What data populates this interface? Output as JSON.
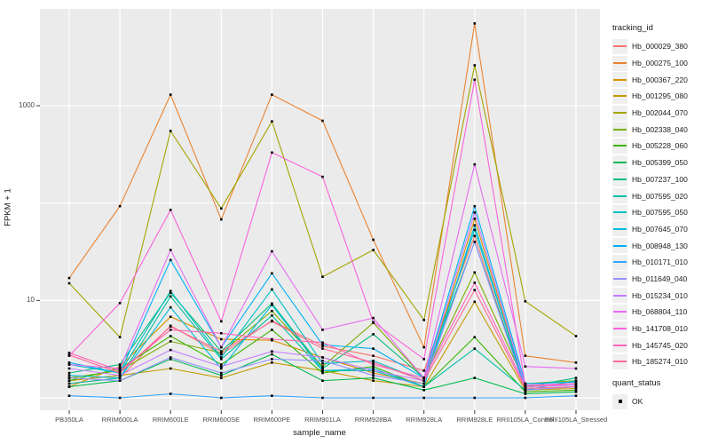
{
  "chart_data": {
    "type": "line",
    "xlabel": "sample_name",
    "ylabel": "FPKM + 1",
    "yscale": "log10",
    "ytick_labels": [
      "1000",
      "10"
    ],
    "ytick_values": [
      1000,
      10
    ],
    "ylim": [
      0.75,
      10500
    ],
    "grid": "on",
    "legend_position": "right",
    "panel_bg": "#ebebeb",
    "grid_color": "#ffffff",
    "point_color": "#000000",
    "categories": [
      "PB350LA",
      "RRIM600LA",
      "RRIM600LE",
      "RRIM600SE",
      "RRIM600PE",
      "RRIM901LA",
      "RRIM928BA",
      "RRIM928LA",
      "RRIM928LE",
      "RRII105LA_Control",
      "RRII105LA_Stressed"
    ],
    "series": [
      {
        "name": "Hb_000029_380",
        "color": "#F8766D",
        "values": [
          1.4,
          1.6,
          5.5,
          2.8,
          6.2,
          3.4,
          2.7,
          1.9,
          46,
          1.2,
          1.3
        ]
      },
      {
        "name": "Hb_000275_100",
        "color": "#EA8331",
        "values": [
          17,
          93,
          1300,
          68,
          1300,
          700,
          42,
          3.3,
          7000,
          2.7,
          2.3
        ]
      },
      {
        "name": "Hb_000367_220",
        "color": "#D89000",
        "values": [
          1.3,
          2.1,
          6.8,
          4.0,
          3.9,
          2.6,
          1.8,
          1.4,
          69,
          1.3,
          1.4
        ]
      },
      {
        "name": "Hb_001295_080",
        "color": "#C09B00",
        "values": [
          1.5,
          1.7,
          2.0,
          1.6,
          2.3,
          1.9,
          1.5,
          1.3,
          9.7,
          1.2,
          1.25
        ]
      },
      {
        "name": "Hb_002044_070",
        "color": "#A3A500",
        "values": [
          15,
          4.2,
          550,
          88,
          690,
          17.5,
          33,
          6.3,
          2600,
          9.8,
          4.3
        ]
      },
      {
        "name": "Hb_002338_040",
        "color": "#7CAE00",
        "values": [
          1.6,
          1.9,
          3.8,
          2.9,
          7.8,
          2.1,
          5.9,
          1.6,
          19.4,
          1.4,
          1.5
        ]
      },
      {
        "name": "Hb_005228_060",
        "color": "#39B600",
        "values": [
          1.5,
          2.0,
          4.3,
          2.2,
          5.0,
          1.8,
          2.1,
          1.3,
          4.2,
          1.15,
          1.2
        ]
      },
      {
        "name": "Hb_005399_050",
        "color": "#00BB4E",
        "values": [
          1.3,
          1.5,
          2.5,
          1.7,
          2.8,
          1.5,
          1.6,
          1.2,
          1.6,
          1.1,
          1.15
        ]
      },
      {
        "name": "Hb_007237_100",
        "color": "#00BF7D",
        "values": [
          1.8,
          2.2,
          12,
          3.0,
          9.3,
          2.0,
          4.5,
          1.6,
          40,
          1.3,
          1.6
        ]
      },
      {
        "name": "Hb_007595_020",
        "color": "#00C1A3",
        "values": [
          1.4,
          1.6,
          11,
          2.5,
          7.0,
          1.9,
          1.9,
          1.3,
          3.2,
          1.2,
          1.5
        ]
      },
      {
        "name": "Hb_007595_050",
        "color": "#00BFC4",
        "values": [
          2.2,
          1.8,
          12.5,
          2.6,
          13,
          2.25,
          2.4,
          1.5,
          53,
          1.3,
          1.4
        ]
      },
      {
        "name": "Hb_007645_070",
        "color": "#00BAE0",
        "values": [
          1.7,
          1.6,
          8.5,
          2.0,
          9.0,
          1.9,
          2.0,
          1.3,
          59,
          1.25,
          1.3
        ]
      },
      {
        "name": "Hb_008948_130",
        "color": "#00B0F6",
        "values": [
          2.3,
          1.8,
          26,
          3.3,
          19,
          3.5,
          3.2,
          1.6,
          93,
          1.4,
          1.45
        ]
      },
      {
        "name": "Hb_010171_010",
        "color": "#35A2FF",
        "values": [
          1.05,
          1.0,
          1.1,
          1.0,
          1.05,
          1.0,
          1.0,
          1.0,
          1.0,
          1.0,
          1.05
        ]
      },
      {
        "name": "Hb_011649_040",
        "color": "#9590FF",
        "values": [
          1.6,
          1.5,
          2.6,
          1.8,
          2.5,
          2.4,
          1.7,
          1.4,
          40,
          1.2,
          1.3
        ]
      },
      {
        "name": "Hb_015234_010",
        "color": "#C77CFF",
        "values": [
          2.0,
          1.7,
          3.1,
          2.1,
          3.0,
          2.6,
          1.9,
          1.5,
          80,
          1.3,
          1.35
        ]
      },
      {
        "name": "Hb_068804_110",
        "color": "#E76BF3",
        "values": [
          2.2,
          2.0,
          33,
          3.3,
          32,
          5.0,
          6.6,
          1.6,
          250,
          2.1,
          2.0
        ]
      },
      {
        "name": "Hb_141708_010",
        "color": "#FA62DB",
        "values": [
          2.7,
          9.4,
          85,
          6.1,
          330,
          186,
          6.0,
          2.5,
          1850,
          1.35,
          1.4
        ]
      },
      {
        "name": "Hb_145745_020",
        "color": "#FF62BC",
        "values": [
          2.9,
          1.9,
          5.0,
          4.6,
          4.0,
          3.7,
          2.2,
          1.6,
          15.2,
          1.3,
          1.4
        ]
      },
      {
        "name": "Hb_185274_010",
        "color": "#FF6A98",
        "values": [
          2.75,
          1.8,
          5.4,
          3.0,
          6.1,
          3.2,
          2.3,
          1.5,
          12.8,
          1.25,
          1.3
        ]
      }
    ]
  },
  "legend": {
    "tracking_title": "tracking_id",
    "quant_title": "quant_status",
    "quant_value": "OK"
  }
}
